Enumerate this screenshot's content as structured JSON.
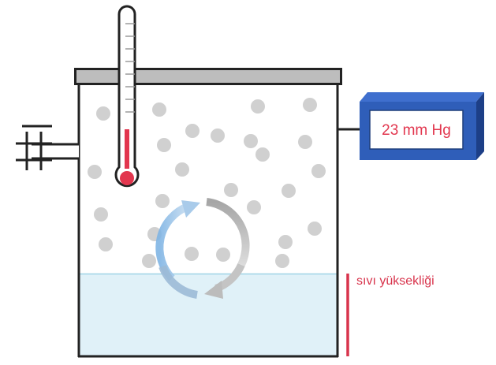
{
  "gauge": {
    "reading": "23 mm Hg"
  },
  "liquid": {
    "label": "sıvı yüksekliği"
  },
  "colors": {
    "liquid_fill": "#e0f1f8",
    "liquid_line": "#9fd3e6",
    "particle": "#d0d0d0",
    "gauge_front": "#2f5eb9",
    "gauge_side": "#1d3f87",
    "thermometer_bulb": "#e2364e",
    "level_marker": "#d8344c",
    "lid": "#bdbdbd",
    "arrow_blue": "#9fc4e6",
    "arrow_gray": "#bdbdbd"
  },
  "icons": [
    "thermometer-icon",
    "pressure-gauge-icon",
    "valve-icon",
    "cycle-arrows-icon"
  ]
}
